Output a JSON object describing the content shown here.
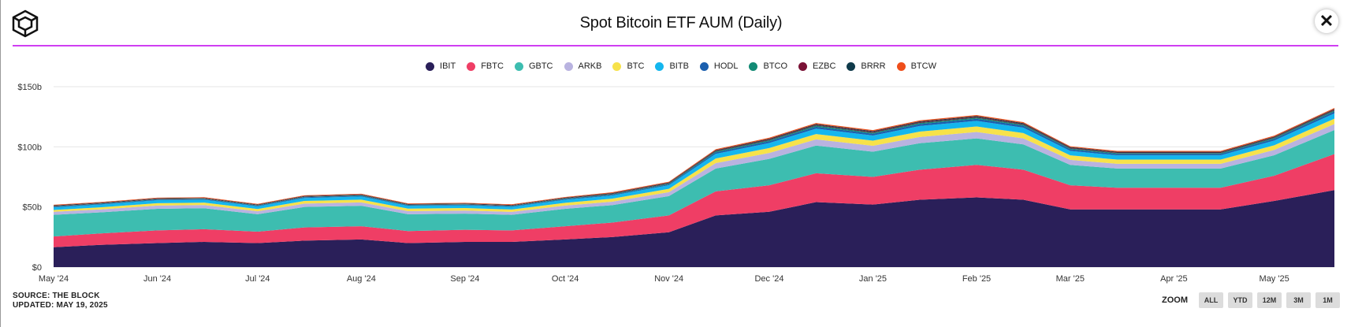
{
  "header": {
    "title": "Spot Bitcoin ETF AUM (Daily)",
    "close_label": "✕"
  },
  "legend": {
    "items": [
      {
        "label": "IBIT",
        "color": "#2a1f59"
      },
      {
        "label": "FBTC",
        "color": "#ef3e65"
      },
      {
        "label": "GBTC",
        "color": "#3dbdb0"
      },
      {
        "label": "ARKB",
        "color": "#b9b3e0"
      },
      {
        "label": "BTC",
        "color": "#f7e24a"
      },
      {
        "label": "BITB",
        "color": "#14b6ee"
      },
      {
        "label": "HODL",
        "color": "#1b5fae"
      },
      {
        "label": "BTCO",
        "color": "#128a74"
      },
      {
        "label": "EZBC",
        "color": "#7a1236"
      },
      {
        "label": "BRRR",
        "color": "#0f3a4a"
      },
      {
        "label": "BTCW",
        "color": "#ef4e1b"
      }
    ]
  },
  "footer": {
    "source": "SOURCE: THE BLOCK",
    "updated": "UPDATED: MAY 19, 2025"
  },
  "zoom": {
    "label": "ZOOM",
    "buttons": [
      "ALL",
      "YTD",
      "12M",
      "3M",
      "1M"
    ]
  },
  "chart_data": {
    "type": "area",
    "stacked": true,
    "title": "Spot Bitcoin ETF AUM (Daily)",
    "x": [
      "2024-05-01",
      "2024-05-15",
      "2024-06-01",
      "2024-06-15",
      "2024-07-01",
      "2024-07-15",
      "2024-08-01",
      "2024-08-15",
      "2024-09-01",
      "2024-09-15",
      "2024-10-01",
      "2024-10-15",
      "2024-11-01",
      "2024-11-15",
      "2024-12-01",
      "2024-12-15",
      "2025-01-01",
      "2025-01-15",
      "2025-02-01",
      "2025-02-15",
      "2025-03-01",
      "2025-03-15",
      "2025-04-01",
      "2025-04-15",
      "2025-05-01",
      "2025-05-19"
    ],
    "x_ticks": [
      "May '24",
      "Jun '24",
      "Jul '24",
      "Aug '24",
      "Sep '24",
      "Oct '24",
      "Nov '24",
      "Dec '24",
      "Jan '25",
      "Feb '25",
      "Mar '25",
      "Apr '25",
      "May '25"
    ],
    "y_ticks": [
      "$0",
      "$50b",
      "$100b",
      "$150b"
    ],
    "ylim": [
      0,
      150
    ],
    "y_unit": "$b",
    "grid": true,
    "legend_position": "top-center",
    "series": [
      {
        "name": "IBIT",
        "values": [
          16.5,
          18.5,
          20,
          21,
          20,
          22,
          23,
          20,
          21,
          21,
          23,
          25,
          29,
          43,
          46,
          54,
          52,
          56,
          58,
          56,
          48,
          48,
          48,
          48,
          55,
          64
        ]
      },
      {
        "name": "FBTC",
        "values": [
          9,
          9.5,
          10.5,
          10.5,
          9.5,
          11,
          11,
          10,
          10,
          9.5,
          11,
          12,
          14,
          20,
          22,
          24,
          23,
          25,
          27,
          25,
          20,
          18,
          18,
          18,
          21,
          30
        ]
      },
      {
        "name": "GBTC",
        "values": [
          18,
          17.5,
          18,
          17.5,
          14.5,
          17,
          17,
          14,
          13.5,
          13,
          14.5,
          14.5,
          16,
          19,
          22,
          23,
          21,
          22,
          22,
          21,
          17,
          16,
          16,
          16,
          17,
          20
        ]
      },
      {
        "name": "ARKB",
        "values": [
          2.5,
          2.5,
          2.7,
          2.6,
          2.4,
          2.8,
          2.8,
          2.5,
          2.5,
          2.4,
          2.7,
          2.9,
          3.3,
          4.5,
          4.9,
          5.2,
          4.9,
          5.2,
          5.3,
          5,
          4.2,
          3.9,
          3.9,
          3.9,
          4.4,
          5
        ]
      },
      {
        "name": "BTC",
        "values": [
          1.5,
          1.7,
          1.9,
          2.0,
          1.9,
          2.2,
          2.3,
          2.1,
          2.1,
          2.0,
          2.3,
          2.5,
          2.8,
          3.8,
          4.1,
          4.4,
          4.2,
          4.5,
          4.6,
          4.4,
          3.7,
          3.5,
          3.5,
          3.5,
          3.9,
          4.4
        ]
      },
      {
        "name": "BITB",
        "values": [
          2.2,
          2.3,
          2.5,
          2.4,
          2.2,
          2.5,
          2.6,
          2.3,
          2.3,
          2.2,
          2.5,
          2.6,
          3.0,
          3.9,
          4.2,
          4.5,
          4.3,
          4.6,
          4.7,
          4.5,
          3.7,
          3.5,
          3.5,
          3.5,
          3.9,
          4.4
        ]
      },
      {
        "name": "HODL",
        "values": [
          0.5,
          0.5,
          0.5,
          0.5,
          0.5,
          0.6,
          0.6,
          0.5,
          0.5,
          0.5,
          0.6,
          0.7,
          0.8,
          1.2,
          1.4,
          1.6,
          1.5,
          1.6,
          1.7,
          1.6,
          1.3,
          1.2,
          1.2,
          1.2,
          1.4,
          1.6
        ]
      },
      {
        "name": "BTCO",
        "values": [
          0.4,
          0.4,
          0.4,
          0.4,
          0.4,
          0.4,
          0.5,
          0.4,
          0.4,
          0.4,
          0.5,
          0.5,
          0.6,
          0.8,
          0.9,
          1.0,
          0.9,
          1.0,
          1.0,
          0.9,
          0.8,
          0.7,
          0.7,
          0.7,
          0.8,
          0.9
        ]
      },
      {
        "name": "EZBC",
        "values": [
          0.3,
          0.3,
          0.3,
          0.3,
          0.3,
          0.3,
          0.3,
          0.3,
          0.3,
          0.3,
          0.3,
          0.4,
          0.4,
          0.5,
          0.6,
          0.6,
          0.6,
          0.6,
          0.6,
          0.6,
          0.5,
          0.5,
          0.5,
          0.5,
          0.5,
          0.6
        ]
      },
      {
        "name": "BRRR",
        "values": [
          0.4,
          0.4,
          0.4,
          0.4,
          0.4,
          0.4,
          0.4,
          0.4,
          0.4,
          0.4,
          0.4,
          0.5,
          0.5,
          0.6,
          0.7,
          0.7,
          0.7,
          0.7,
          0.7,
          0.7,
          0.6,
          0.6,
          0.6,
          0.6,
          0.6,
          0.6
        ]
      },
      {
        "name": "BTCW",
        "values": [
          0.5,
          0.5,
          0.5,
          0.5,
          0.5,
          0.5,
          0.5,
          0.5,
          0.5,
          0.5,
          0.5,
          0.6,
          0.6,
          0.7,
          0.8,
          0.8,
          0.8,
          0.8,
          0.8,
          0.8,
          0.7,
          0.7,
          0.7,
          0.7,
          0.8,
          0.8
        ]
      }
    ]
  }
}
